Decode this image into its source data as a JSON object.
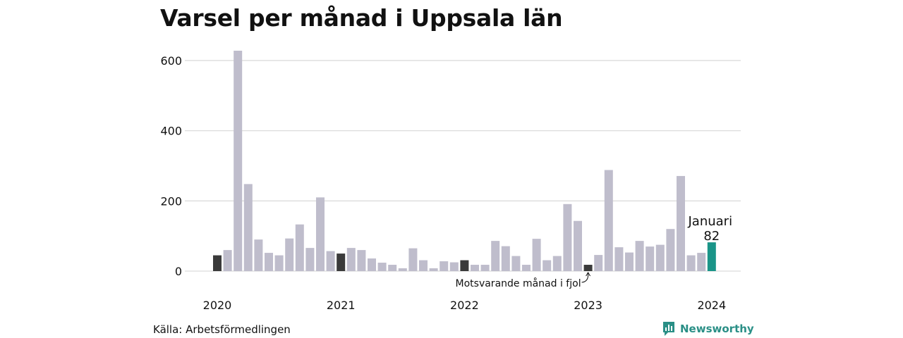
{
  "title": "Varsel per månad i Uppsala län",
  "source": "Källa: Arbetsförmedlingen",
  "brand": "Newsworthy",
  "colors": {
    "bar_default": "#bfbdcc",
    "bar_same_month": "#3a3a3a",
    "bar_current": "#1a9488",
    "grid": "#dcdcdc",
    "brand": "#2a8f86"
  },
  "icons": {
    "brand_logo": "bar-chart-speech-bubble-icon"
  },
  "chart_data": {
    "type": "bar",
    "title": "Varsel per månad i Uppsala län",
    "xlabel": "",
    "ylabel": "",
    "ylim": [
      0,
      630
    ],
    "yticks": [
      0,
      200,
      400,
      600
    ],
    "grid": true,
    "x_ticks": [
      {
        "label": "2020",
        "index": 0
      },
      {
        "label": "2021",
        "index": 12
      },
      {
        "label": "2022",
        "index": 24
      },
      {
        "label": "2023",
        "index": 36
      },
      {
        "label": "2024",
        "index": 48
      }
    ],
    "categories": [
      "2020-01",
      "2020-02",
      "2020-03",
      "2020-04",
      "2020-05",
      "2020-06",
      "2020-07",
      "2020-08",
      "2020-09",
      "2020-10",
      "2020-11",
      "2020-12",
      "2021-01",
      "2021-02",
      "2021-03",
      "2021-04",
      "2021-05",
      "2021-06",
      "2021-07",
      "2021-08",
      "2021-09",
      "2021-10",
      "2021-11",
      "2021-12",
      "2022-01",
      "2022-02",
      "2022-03",
      "2022-04",
      "2022-05",
      "2022-06",
      "2022-07",
      "2022-08",
      "2022-09",
      "2022-10",
      "2022-11",
      "2022-12",
      "2023-01",
      "2023-02",
      "2023-03",
      "2023-04",
      "2023-05",
      "2023-06",
      "2023-07",
      "2023-08",
      "2023-09",
      "2023-10",
      "2023-11",
      "2023-12",
      "2024-01"
    ],
    "values": [
      45,
      60,
      628,
      248,
      90,
      52,
      45,
      93,
      133,
      66,
      210,
      57,
      50,
      66,
      60,
      36,
      24,
      18,
      8,
      65,
      31,
      8,
      28,
      25,
      31,
      18,
      18,
      86,
      71,
      43,
      18,
      92,
      31,
      43,
      191,
      143,
      18,
      46,
      288,
      68,
      53,
      86,
      70,
      75,
      120,
      271,
      45,
      52,
      82
    ],
    "highlight_same_month_indices": [
      0,
      12,
      24,
      36
    ],
    "current_index": 48,
    "annotations": {
      "current_label": "Januari",
      "current_value": "82",
      "same_month_label": "Motsvarande månad i fjol"
    }
  }
}
